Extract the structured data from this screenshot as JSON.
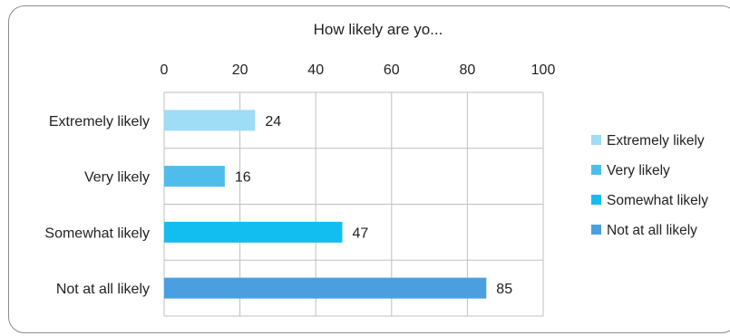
{
  "chart_data": {
    "type": "bar",
    "orientation": "horizontal",
    "title": "How likely are yo...",
    "xlabel": "",
    "ylabel": "",
    "xlim": [
      0,
      100
    ],
    "x_ticks": [
      "0",
      "20",
      "40",
      "60",
      "80",
      "100"
    ],
    "x_tick_values": [
      0,
      20,
      40,
      60,
      80,
      100
    ],
    "x_axis_position": "top",
    "grid": true,
    "categories": [
      "Extremely likely",
      "Very likely",
      "Somewhat likely",
      "Not at all likely"
    ],
    "values": [
      24,
      16,
      47,
      85
    ],
    "value_labels": [
      "24",
      "16",
      "47",
      "85"
    ],
    "colors": [
      "#9fdcf5",
      "#4fbdeb",
      "#12bef0",
      "#4a9fe0"
    ],
    "legend": {
      "placement": "right",
      "entries": [
        "Extremely likely",
        "Very likely",
        "Somewhat likely",
        "Not at all likely"
      ]
    }
  }
}
